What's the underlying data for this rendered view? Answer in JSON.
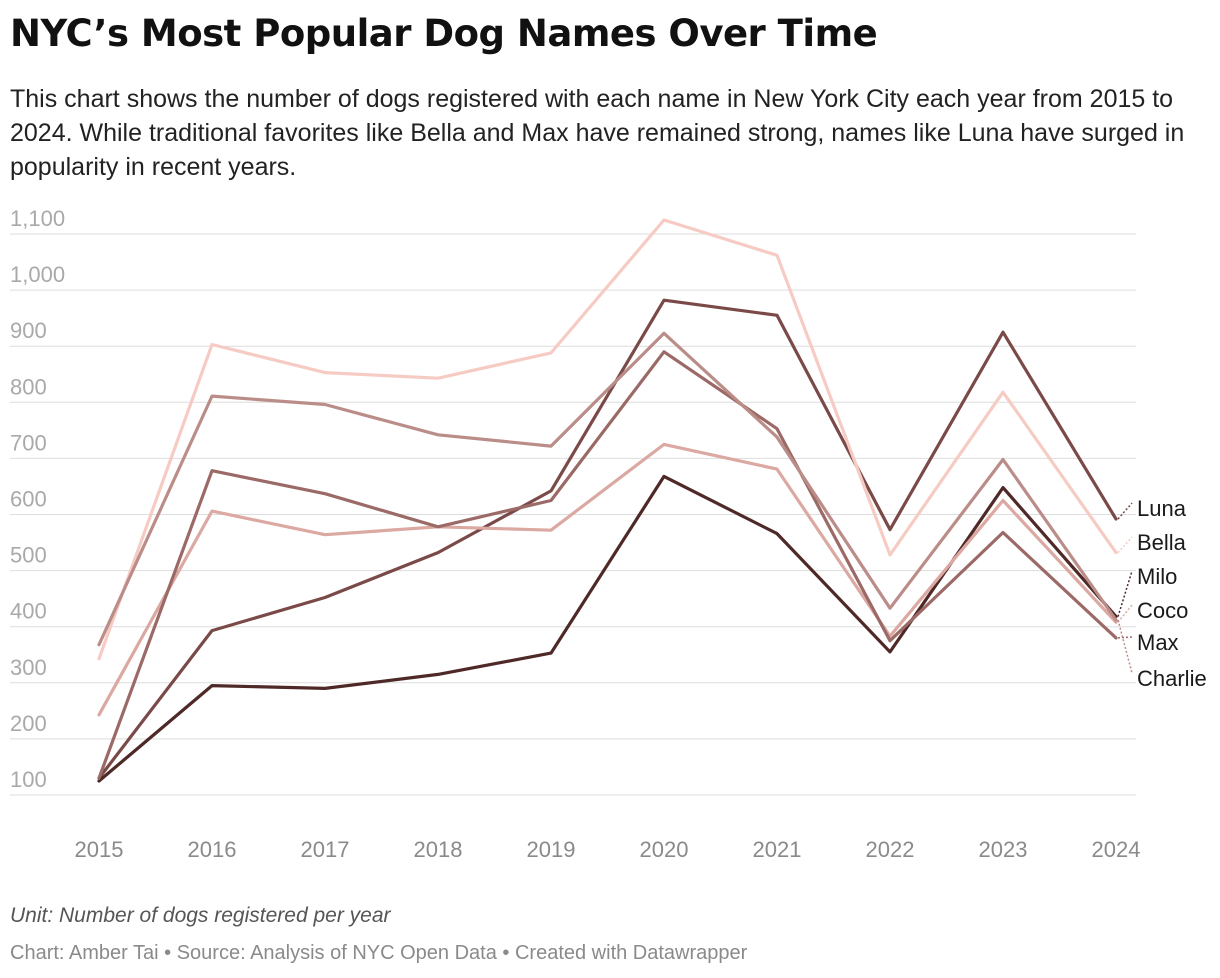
{
  "header": {
    "title": "NYC’s Most Popular Dog Names Over Time",
    "subtitle": "This chart shows the number of dogs registered with each name in New York City each year from 2015 to 2024. While traditional favorites like Bella and Max have remained strong, names like Luna have surged in popularity in recent years."
  },
  "chart_data": {
    "type": "line",
    "title": "NYC’s Most Popular Dog Names Over Time",
    "xlabel": "",
    "ylabel": "Number of dogs registered per year",
    "x": [
      "2015",
      "2016",
      "2017",
      "2018",
      "2019",
      "2020",
      "2021",
      "2022",
      "2023",
      "2024"
    ],
    "ylim": [
      100,
      1100
    ],
    "yticks": [
      100,
      200,
      300,
      400,
      500,
      600,
      700,
      800,
      900,
      1000,
      1100
    ],
    "ytick_labels": [
      "100",
      "200",
      "300",
      "400",
      "500",
      "600",
      "700",
      "800",
      "900",
      "1,000",
      "1,100"
    ],
    "grid": true,
    "legend": "direct labels at right end of lines",
    "series": [
      {
        "name": "Luna",
        "color": "#7a4a48",
        "values": [
          130,
          393,
          452,
          532,
          642,
          982,
          955,
          573,
          925,
          592
        ]
      },
      {
        "name": "Bella",
        "color": "#f6cbc3",
        "values": [
          343,
          903,
          853,
          843,
          888,
          1125,
          1062,
          528,
          818,
          532
        ]
      },
      {
        "name": "Milo",
        "color": "#4e2927",
        "values": [
          125,
          295,
          290,
          315,
          353,
          668,
          566,
          355,
          648,
          418
        ]
      },
      {
        "name": "Coco",
        "color": "#dba8a2",
        "values": [
          243,
          606,
          564,
          578,
          572,
          725,
          681,
          383,
          625,
          408
        ]
      },
      {
        "name": "Max",
        "color": "#9c6a66",
        "values": [
          130,
          678,
          637,
          578,
          625,
          890,
          753,
          375,
          568,
          380
        ]
      },
      {
        "name": "Charlie",
        "color": "#bb8d88",
        "values": [
          368,
          811,
          796,
          742,
          722,
          923,
          738,
          433,
          698,
          412
        ]
      }
    ]
  },
  "notes": {
    "unit": "Unit: Number of dogs registered per year",
    "source": "Chart: Amber Tai • Source: Analysis of NYC Open Data • Created with Datawrapper"
  }
}
